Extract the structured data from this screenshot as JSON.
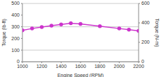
{
  "chart_data": {
    "type": "line",
    "x_label": "Engine Speed (RPM)",
    "y_label": "Torque (lb-ft)",
    "y2_label": "Torque (N-m)",
    "x": [
      1000,
      1100,
      1200,
      1300,
      1400,
      1500,
      1600,
      1800,
      2000,
      2100,
      2200
    ],
    "series": [
      {
        "name": "Torque",
        "color": "#cc33cc",
        "marker": "circle",
        "values": [
          270,
          285,
          297,
          310,
          320,
          330,
          325,
          305,
          285,
          275,
          265
        ]
      }
    ],
    "xlim": [
      1000,
      2200
    ],
    "xticks": [
      1000,
      1200,
      1400,
      1600,
      1800,
      2000,
      2200
    ],
    "ylim": [
      0,
      500
    ],
    "yticks": [
      0,
      100,
      200,
      300,
      400,
      500
    ],
    "y2lim": [
      0,
      600
    ],
    "y2ticks": [
      0,
      200,
      400,
      600
    ],
    "grid": true
  }
}
